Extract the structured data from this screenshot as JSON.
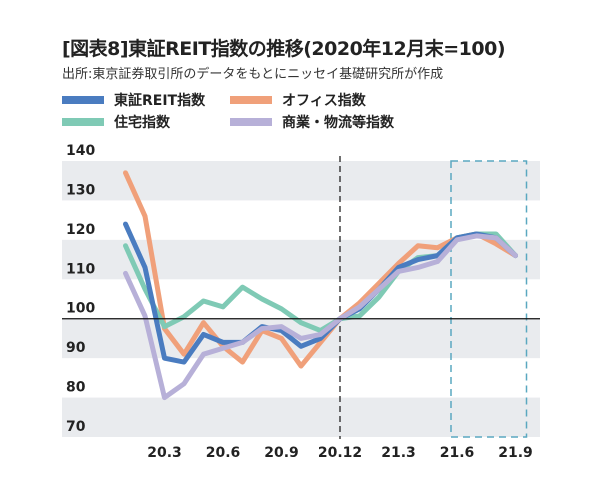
{
  "chart_data": {
    "type": "line",
    "title": "[図表8]東証REIT指数の推移(2020年12月末=100)",
    "subtitle": "出所:東京証券取引所のデータをもとにニッセイ基礎研究所が作成",
    "xlabel": "",
    "ylabel": "",
    "x": [
      "20.1",
      "20.2",
      "20.3",
      "20.4",
      "20.5",
      "20.6",
      "20.7",
      "20.8",
      "20.9",
      "20.10",
      "20.11",
      "20.12",
      "21.1",
      "21.2",
      "21.3",
      "21.4",
      "21.5",
      "21.6",
      "21.7",
      "21.8",
      "21.9"
    ],
    "x_tick_labels": [
      "20.3",
      "20.6",
      "20.9",
      "20.12",
      "21.3",
      "21.6",
      "21.9"
    ],
    "y_tick_labels": [
      "140",
      "130",
      "120",
      "110",
      "100",
      "90",
      "80",
      "70"
    ],
    "ylim": [
      70,
      140
    ],
    "grid": "alternating horizontal bands",
    "reference_line": 100,
    "legend_placement": "top",
    "series": [
      {
        "name": "東証REIT指数",
        "color": "#4a7cc0",
        "values": [
          124,
          113,
          90,
          89,
          96,
          94,
          94,
          98,
          97,
          93,
          95,
          100,
          102.5,
          107.5,
          113,
          115,
          116,
          120.5,
          121.5,
          120.5,
          116
        ]
      },
      {
        "name": "オフィス指数",
        "color": "#f0a07a",
        "values": [
          137,
          126,
          97.5,
          91,
          99,
          93,
          89,
          97,
          95,
          88,
          94,
          100,
          104,
          109,
          114,
          118.5,
          118,
          120.5,
          121.5,
          119,
          116
        ]
      },
      {
        "name": "住宅指数",
        "color": "#7fcab5",
        "values": [
          118.5,
          107.5,
          98,
          100.5,
          104.5,
          103,
          108,
          105,
          102.5,
          99,
          97,
          100,
          100.7,
          105.5,
          112,
          115.5,
          116,
          120.5,
          121.5,
          121.5,
          116
        ]
      },
      {
        "name": "商業・物流等指数",
        "color": "#b7b0d8",
        "values": [
          111.5,
          100.7,
          80,
          83.5,
          91,
          92.5,
          94,
          97.5,
          98,
          95,
          96,
          100,
          103,
          107.5,
          112,
          113,
          114.5,
          120,
          121,
          120.5,
          116
        ]
      }
    ],
    "annotations": {
      "vertical_dashed_line_at": "20.12",
      "highlight_box_range": [
        "21.6",
        "21.9"
      ],
      "highlight_color": "#5aa8c0"
    }
  }
}
